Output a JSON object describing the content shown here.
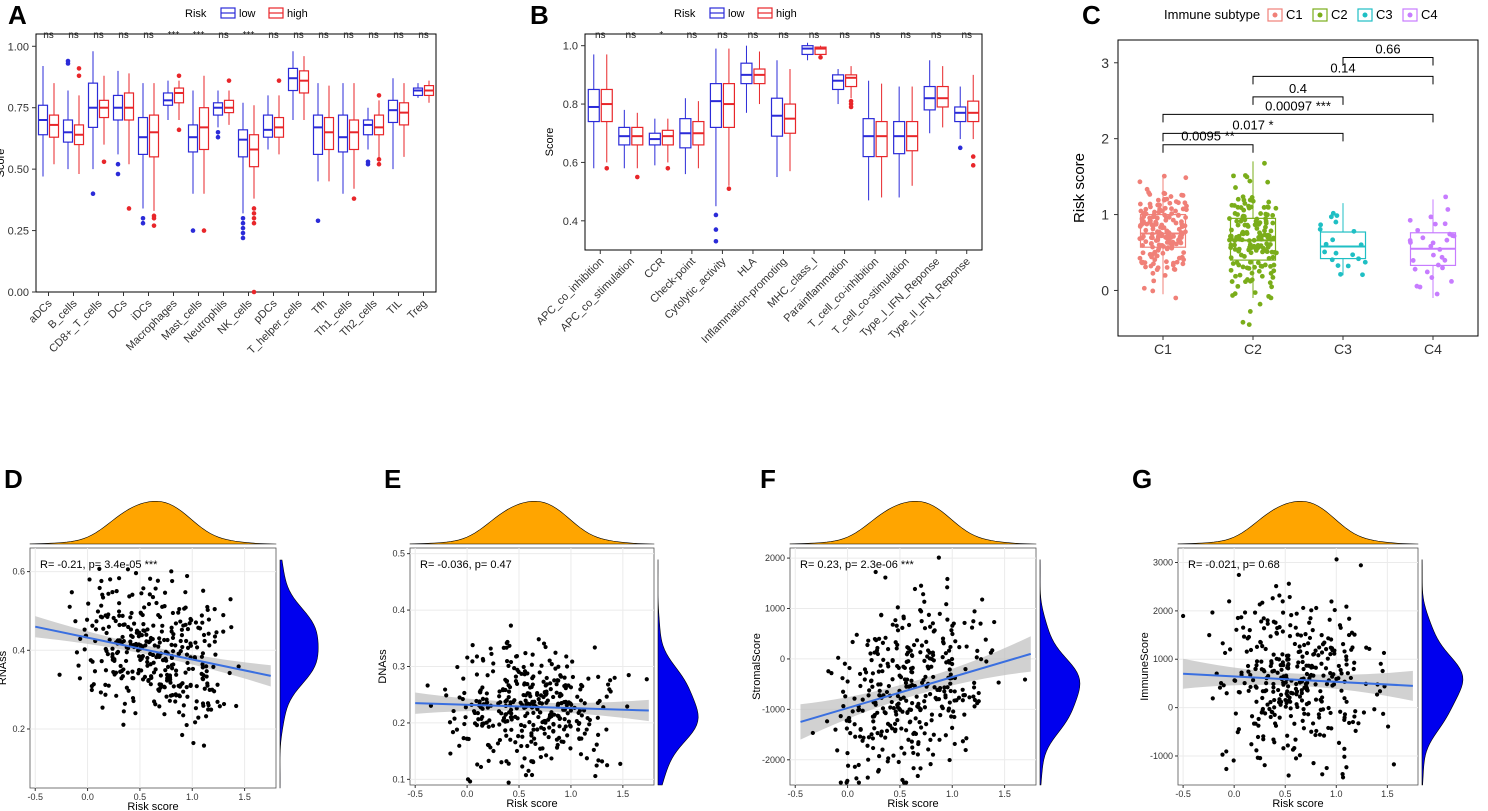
{
  "panels": {
    "A": "A",
    "B": "B",
    "C": "C",
    "D": "D",
    "E": "E",
    "F": "F",
    "G": "G"
  },
  "colors": {
    "low": "#2b2bd8",
    "high": "#e8262a",
    "C1": "#f08078",
    "C2": "#7aad1a",
    "C3": "#1fbfc4",
    "C4": "#c77cff",
    "density_top": "#ffa500",
    "density_right": "#0000ee",
    "trend": "#3a6fe0",
    "band": "#bdbdbd",
    "grid": "#ebebeb"
  },
  "chart_data": [
    {
      "id": "A",
      "type": "boxplot",
      "legend_title": "Risk",
      "legend": [
        "low",
        "high"
      ],
      "ylabel": "Score",
      "ylim": [
        0,
        1.05
      ],
      "yticks": [
        "0.00",
        "0.25",
        "0.50",
        "0.75",
        "1.00"
      ],
      "yticks_values": [
        0,
        0.25,
        0.5,
        0.75,
        1.0
      ],
      "categories": [
        "aDCs",
        "B_cells",
        "CD8+_T_cells",
        "DCs",
        "iDCs",
        "Macrophages",
        "Mast_cells",
        "Neutrophils",
        "NK_cells",
        "pDCs",
        "T_helper_cells",
        "Tfh",
        "Th1_cells",
        "Th2_cells",
        "TIL",
        "Treg"
      ],
      "significance": [
        "ns",
        "ns",
        "ns",
        "ns",
        "ns",
        "***",
        "***",
        "ns",
        "***",
        "ns",
        "ns",
        "ns",
        "ns",
        "ns",
        "ns",
        "ns"
      ],
      "series": [
        {
          "name": "low",
          "boxes": [
            [
              0.47,
              0.64,
              0.7,
              0.76,
              0.92
            ],
            [
              0.5,
              0.61,
              0.65,
              0.7,
              0.82
            ],
            [
              0.5,
              0.67,
              0.75,
              0.85,
              0.98
            ],
            [
              0.56,
              0.7,
              0.75,
              0.8,
              0.9
            ],
            [
              0.34,
              0.56,
              0.63,
              0.71,
              0.85
            ],
            [
              0.7,
              0.76,
              0.78,
              0.81,
              0.86
            ],
            [
              0.4,
              0.57,
              0.63,
              0.68,
              0.82
            ],
            [
              0.67,
              0.72,
              0.75,
              0.77,
              0.82
            ],
            [
              0.32,
              0.55,
              0.62,
              0.66,
              0.77
            ],
            [
              0.58,
              0.63,
              0.66,
              0.72,
              0.8
            ],
            [
              0.7,
              0.82,
              0.87,
              0.91,
              0.98
            ],
            [
              0.45,
              0.56,
              0.67,
              0.72,
              0.85
            ],
            [
              0.4,
              0.57,
              0.63,
              0.72,
              0.85
            ],
            [
              0.58,
              0.64,
              0.68,
              0.7,
              0.75
            ],
            [
              0.5,
              0.69,
              0.74,
              0.78,
              0.87
            ],
            [
              0.79,
              0.8,
              0.82,
              0.83,
              0.85
            ]
          ],
          "outliers": [
            [],
            [
              0.93,
              0.94
            ],
            [
              0.4
            ],
            [
              0.52,
              0.48
            ],
            [
              0.3,
              0.28
            ],
            [],
            [
              0.25
            ],
            [
              0.63,
              0.65
            ],
            [
              0.3,
              0.28,
              0.26,
              0.24,
              0.22
            ],
            [],
            [],
            [
              0.29
            ],
            [],
            [
              0.52,
              0.53
            ],
            [],
            []
          ]
        },
        {
          "name": "high",
          "boxes": [
            [
              0.52,
              0.63,
              0.68,
              0.72,
              0.85
            ],
            [
              0.48,
              0.6,
              0.64,
              0.68,
              0.8
            ],
            [
              0.6,
              0.71,
              0.75,
              0.78,
              0.88
            ],
            [
              0.52,
              0.7,
              0.75,
              0.81,
              0.89
            ],
            [
              0.33,
              0.55,
              0.65,
              0.72,
              0.85
            ],
            [
              0.7,
              0.77,
              0.81,
              0.83,
              0.86
            ],
            [
              0.4,
              0.58,
              0.67,
              0.75,
              0.88
            ],
            [
              0.68,
              0.73,
              0.75,
              0.78,
              0.82
            ],
            [
              0.38,
              0.51,
              0.58,
              0.64,
              0.76
            ],
            [
              0.56,
              0.63,
              0.67,
              0.71,
              0.8
            ],
            [
              0.7,
              0.81,
              0.86,
              0.9,
              0.96
            ],
            [
              0.45,
              0.58,
              0.65,
              0.71,
              0.84
            ],
            [
              0.42,
              0.58,
              0.65,
              0.7,
              0.85
            ],
            [
              0.54,
              0.64,
              0.67,
              0.72,
              0.78
            ],
            [
              0.55,
              0.68,
              0.73,
              0.77,
              0.85
            ],
            [
              0.77,
              0.8,
              0.82,
              0.84,
              0.86
            ]
          ],
          "outliers": [
            [],
            [
              0.88,
              0.91
            ],
            [
              0.53
            ],
            [
              0.34
            ],
            [
              0.31,
              0.3,
              0.27
            ],
            [
              0.66,
              0.88
            ],
            [
              0.25
            ],
            [
              0.86
            ],
            [
              0.34,
              0.32,
              0.3,
              0.28,
              0.0
            ],
            [
              0.86
            ],
            [],
            [],
            [
              0.38
            ],
            [
              0.52,
              0.54,
              0.8
            ],
            [],
            []
          ]
        }
      ]
    },
    {
      "id": "B",
      "type": "boxplot",
      "legend_title": "Risk",
      "legend": [
        "low",
        "high"
      ],
      "ylabel": "Score",
      "ylim": [
        0.3,
        1.04
      ],
      "yticks": [
        "0.4",
        "0.6",
        "0.8",
        "1.0"
      ],
      "yticks_values": [
        0.4,
        0.6,
        0.8,
        1.0
      ],
      "categories": [
        "APC_co_inhibition",
        "APC_co_stimulation",
        "CCR",
        "Check-point",
        "Cytolytic_activity",
        "HLA",
        "Inflammation-promoting",
        "MHC_class_I",
        "Parainflammation",
        "T_cell_co-inhibition",
        "T_cell_co-stimulation",
        "Type_I_IFN_Reponse",
        "Type_II_IFN_Reponse"
      ],
      "significance": [
        "ns",
        "ns",
        "*",
        "ns",
        "ns",
        "ns",
        "ns",
        "ns",
        "ns",
        "ns",
        "ns",
        "ns",
        "ns"
      ],
      "series": [
        {
          "name": "low",
          "boxes": [
            [
              0.58,
              0.74,
              0.79,
              0.85,
              0.97
            ],
            [
              0.58,
              0.66,
              0.69,
              0.72,
              0.78
            ],
            [
              0.59,
              0.66,
              0.68,
              0.7,
              0.75
            ],
            [
              0.56,
              0.65,
              0.7,
              0.75,
              0.82
            ],
            [
              0.45,
              0.72,
              0.81,
              0.87,
              0.99
            ],
            [
              0.77,
              0.87,
              0.9,
              0.94,
              1.0
            ],
            [
              0.55,
              0.69,
              0.76,
              0.82,
              0.95
            ],
            [
              0.95,
              0.97,
              0.99,
              1.0,
              1.01
            ],
            [
              0.8,
              0.85,
              0.88,
              0.9,
              0.92
            ],
            [
              0.47,
              0.62,
              0.69,
              0.75,
              0.88
            ],
            [
              0.48,
              0.63,
              0.69,
              0.74,
              0.86
            ],
            [
              0.7,
              0.78,
              0.82,
              0.86,
              0.95
            ],
            [
              0.68,
              0.74,
              0.77,
              0.79,
              0.86
            ]
          ],
          "outliers": [
            [],
            [],
            [],
            [],
            [
              0.42,
              0.37,
              0.33
            ],
            [],
            [],
            [],
            [],
            [],
            [],
            [],
            [
              0.65
            ]
          ]
        },
        {
          "name": "high",
          "boxes": [
            [
              0.6,
              0.74,
              0.8,
              0.85,
              0.97
            ],
            [
              0.58,
              0.66,
              0.69,
              0.72,
              0.77
            ],
            [
              0.6,
              0.66,
              0.69,
              0.71,
              0.75
            ],
            [
              0.58,
              0.66,
              0.7,
              0.74,
              0.81
            ],
            [
              0.52,
              0.72,
              0.8,
              0.87,
              0.99
            ],
            [
              0.8,
              0.87,
              0.9,
              0.92,
              0.98
            ],
            [
              0.57,
              0.7,
              0.75,
              0.8,
              0.92
            ],
            [
              0.96,
              0.97,
              0.99,
              0.995,
              1.0
            ],
            [
              0.82,
              0.86,
              0.89,
              0.9,
              0.93
            ],
            [
              0.48,
              0.62,
              0.69,
              0.74,
              0.87
            ],
            [
              0.52,
              0.64,
              0.69,
              0.74,
              0.86
            ],
            [
              0.72,
              0.79,
              0.82,
              0.86,
              0.93
            ],
            [
              0.68,
              0.74,
              0.77,
              0.81,
              0.9
            ]
          ],
          "outliers": [
            [
              0.58
            ],
            [
              0.55
            ],
            [
              0.58
            ],
            [],
            [
              0.51
            ],
            [],
            [],
            [
              0.96
            ],
            [
              0.79,
              0.8,
              0.81
            ],
            [],
            [],
            [],
            [
              0.62,
              0.59
            ]
          ]
        }
      ]
    },
    {
      "id": "C",
      "type": "boxplot+jitter",
      "legend_title": "Immune subtype",
      "legend": [
        "C1",
        "C2",
        "C3",
        "C4"
      ],
      "ylabel": "Risk score",
      "ylim": [
        -0.6,
        3.3
      ],
      "yticks": [
        "0",
        "1",
        "2",
        "3"
      ],
      "yticks_values": [
        0,
        1,
        2,
        3
      ],
      "categories": [
        "C1",
        "C2",
        "C3",
        "C4"
      ],
      "boxes": [
        [
          -0.05,
          0.57,
          0.75,
          1.0,
          1.5
        ],
        [
          -0.1,
          0.4,
          0.66,
          0.95,
          1.7
        ],
        [
          0.2,
          0.42,
          0.58,
          0.77,
          1.15
        ],
        [
          -0.1,
          0.33,
          0.55,
          0.76,
          1.2
        ]
      ],
      "point_counts": [
        170,
        160,
        20,
        30
      ],
      "comparisons": [
        {
          "groups": [
            "C1",
            "C2"
          ],
          "label": "0.0095 **",
          "y": 1.92
        },
        {
          "groups": [
            "C1",
            "C3"
          ],
          "label": "0.017 *",
          "y": 2.07
        },
        {
          "groups": [
            "C1",
            "C4"
          ],
          "label": "0.00097 ***",
          "y": 2.32
        },
        {
          "groups": [
            "C2",
            "C3"
          ],
          "label": "0.4",
          "y": 2.55
        },
        {
          "groups": [
            "C2",
            "C4"
          ],
          "label": "0.14",
          "y": 2.82
        },
        {
          "groups": [
            "C3",
            "C4"
          ],
          "label": "0.66",
          "y": 3.07
        }
      ]
    },
    {
      "id": "D",
      "type": "scatter+regression",
      "xlabel": "Risk score",
      "ylabel": "RNAss",
      "xlim": [
        -0.55,
        1.8
      ],
      "ylim": [
        0.05,
        0.66
      ],
      "xticks": [
        "-0.5",
        "0.0",
        "0.5",
        "1.0",
        "1.5"
      ],
      "xticks_values": [
        -0.5,
        0,
        0.5,
        1,
        1.5
      ],
      "yticks": [
        "0.2",
        "0.4",
        "0.6"
      ],
      "yticks_values": [
        0.2,
        0.4,
        0.6
      ],
      "annotation": "R= -0.21, p= 3.4e-05 ***",
      "fit": [
        [
          -0.5,
          0.46
        ],
        [
          1.75,
          0.335
        ]
      ],
      "band": 0.02,
      "y_center": 0.41,
      "y_spread": 0.085,
      "n": 370
    },
    {
      "id": "E",
      "type": "scatter+regression",
      "xlabel": "Risk score",
      "ylabel": "DNAss",
      "xlim": [
        -0.55,
        1.8
      ],
      "ylim": [
        0.09,
        0.51
      ],
      "xticks": [
        "-0.5",
        "0.0",
        "0.5",
        "1.0",
        "1.5"
      ],
      "xticks_values": [
        -0.5,
        0,
        0.5,
        1,
        1.5
      ],
      "yticks": [
        "0.1",
        "0.2",
        "0.3",
        "0.4",
        "0.5"
      ],
      "yticks_values": [
        0.1,
        0.2,
        0.3,
        0.4,
        0.5
      ],
      "annotation": "R= -0.036, p= 0.47",
      "fit": [
        [
          -0.5,
          0.235
        ],
        [
          1.75,
          0.222
        ]
      ],
      "band": 0.014,
      "y_center": 0.22,
      "y_spread": 0.055,
      "n": 370
    },
    {
      "id": "F",
      "type": "scatter+regression",
      "xlabel": "Risk score",
      "ylabel": "StromalScore",
      "xlim": [
        -0.55,
        1.8
      ],
      "ylim": [
        -2500,
        2200
      ],
      "xticks": [
        "-0.5",
        "0.0",
        "0.5",
        "1.0",
        "1.5"
      ],
      "xticks_values": [
        -0.5,
        0,
        0.5,
        1,
        1.5
      ],
      "yticks": [
        "-2000",
        "-1000",
        "0",
        "1000",
        "2000"
      ],
      "yticks_values": [
        -2000,
        -1000,
        0,
        1000,
        2000
      ],
      "annotation": "R= 0.23, p= 2.3e-06 ***",
      "fit": [
        [
          -0.45,
          -1250
        ],
        [
          1.75,
          100
        ]
      ],
      "band": 260,
      "y_center": -600,
      "y_spread": 900,
      "n": 370
    },
    {
      "id": "G",
      "type": "scatter+regression",
      "xlabel": "Risk score",
      "ylabel": "ImmuneScore",
      "xlim": [
        -0.55,
        1.8
      ],
      "ylim": [
        -1600,
        3300
      ],
      "xticks": [
        "-0.5",
        "0.0",
        "0.5",
        "1.0",
        "1.5"
      ],
      "xticks_values": [
        -0.5,
        0,
        0.5,
        1,
        1.5
      ],
      "yticks": [
        "-1000",
        "0",
        "1000",
        "2000",
        "3000"
      ],
      "yticks_values": [
        -1000,
        0,
        1000,
        2000,
        3000
      ],
      "annotation": "R= -0.021, p= 0.68",
      "fit": [
        [
          -0.5,
          700
        ],
        [
          1.75,
          450
        ]
      ],
      "band": 230,
      "y_center": 500,
      "y_spread": 850,
      "n": 370
    }
  ]
}
